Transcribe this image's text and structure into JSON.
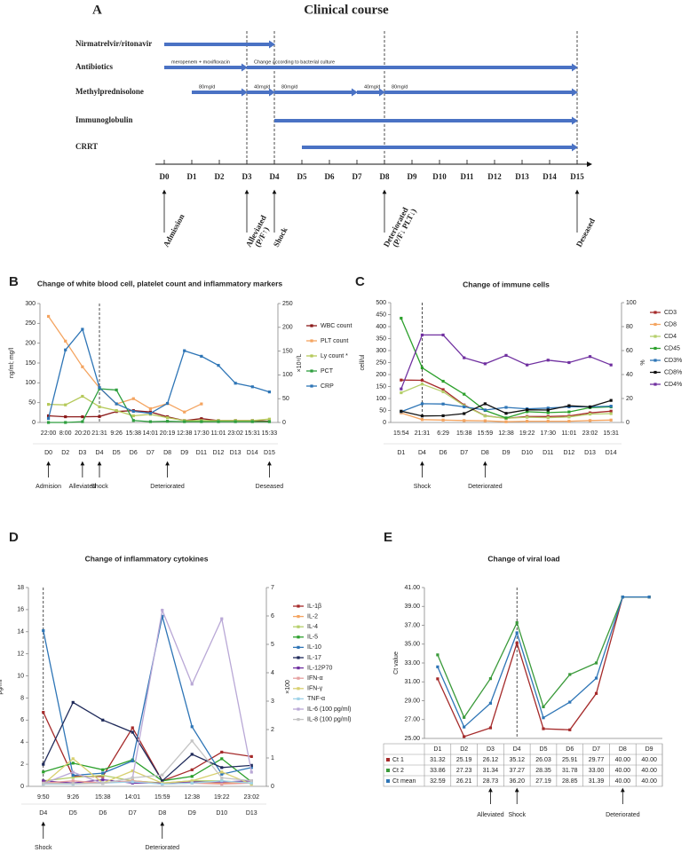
{
  "clinical_course": {
    "label": "A",
    "title": "Clinical course",
    "days": [
      "D0",
      "D1",
      "D2",
      "D3",
      "D4",
      "D5",
      "D6",
      "D7",
      "D8",
      "D9",
      "D10",
      "D11",
      "D12",
      "D13",
      "D14",
      "D15"
    ],
    "treatments": [
      {
        "name": "Nirmatrelvir/ritonavir",
        "segments": [
          {
            "from": "D0",
            "to": "D4"
          }
        ]
      },
      {
        "name": "Antibiotics",
        "segments": [
          {
            "from": "D0",
            "to": "D3",
            "text": "meropenem + moxifloxacin"
          },
          {
            "from": "D3",
            "to": "D15",
            "text": "Change according to bacterial culture"
          }
        ]
      },
      {
        "name": "Methylprednisolone",
        "segments": [
          {
            "from": "D1",
            "to": "D3",
            "text": "80mg/d"
          },
          {
            "from": "D3",
            "to": "D4",
            "text": "40mg/d"
          },
          {
            "from": "D4",
            "to": "D7",
            "text": "80mg/d"
          },
          {
            "from": "D7",
            "to": "D8",
            "text": "40mg/d"
          },
          {
            "from": "D8",
            "to": "D15",
            "text": "80mg/d"
          }
        ]
      },
      {
        "name": "Immunoglobulin",
        "segments": [
          {
            "from": "D4",
            "to": "D15"
          }
        ]
      },
      {
        "name": "CRRT",
        "segments": [
          {
            "from": "D5",
            "to": "D15"
          }
        ]
      }
    ],
    "events": [
      {
        "text": "Admission",
        "day": "D0"
      },
      {
        "text": "Alleviated",
        "detail": "(P/F↑)",
        "day": "D3",
        "dashed": true
      },
      {
        "text": "Shock",
        "day": "D4",
        "dashed": true
      },
      {
        "text": "Deteriorated",
        "detail": "(P/F↓ PLT↓)",
        "day": "D8",
        "dashed": true
      },
      {
        "text": "Deseased",
        "day": "D15",
        "dashed": true
      }
    ]
  },
  "chart_data": [
    {
      "type": "line",
      "label": "B",
      "title": "Change of white blood cell, platelet count and inflammatory markers",
      "ylabel": "ng/ml; mg/l",
      "y2label": "×10⁹/L",
      "legend": "right",
      "categories": [
        "22:00",
        "8:00",
        "20:20",
        "21:31",
        "9:26",
        "15:38",
        "14:01",
        "20:19",
        "12:38",
        "17:30",
        "11:01",
        "23:02",
        "15:31",
        "15:33"
      ],
      "days": [
        "D0",
        "D2",
        "D3",
        "D4",
        "D5",
        "D6",
        "D7",
        "D8",
        "D9",
        "D11",
        "D12",
        "D13",
        "D14",
        "D15"
      ],
      "dashed_line": "D4",
      "ylim": [
        0,
        300
      ],
      "yticks": [
        0,
        50,
        100,
        150,
        200,
        250,
        300
      ],
      "y2lim": [
        0,
        250
      ],
      "y2ticks": [
        0,
        50,
        100,
        150,
        200,
        250
      ],
      "series": [
        {
          "name": "WBC count",
          "color": "#8b1a1a",
          "axis": "y2",
          "values": [
            14,
            12,
            12,
            12.5,
            23,
            25,
            22,
            12,
            4,
            8,
            4,
            4,
            4,
            2.5
          ]
        },
        {
          "name": "PLT count",
          "color": "#f4a460",
          "axis": "y2",
          "values": [
            223,
            171,
            117,
            73,
            39,
            50,
            29,
            40,
            22,
            39,
            null,
            null,
            null,
            null
          ]
        },
        {
          "name": "Ly count *",
          "color": "#b5c95a",
          "axis": "y2",
          "values": [
            38,
            37,
            55,
            33,
            25,
            14,
            17,
            10,
            4,
            4,
            4,
            4,
            4,
            7
          ]
        },
        {
          "name": "PCT",
          "color": "#2e9e3e",
          "values": [
            0,
            0,
            2,
            85,
            82,
            5,
            2,
            3,
            2,
            2,
            2,
            2,
            2,
            2
          ]
        },
        {
          "name": "CRP",
          "color": "#2e75b6",
          "values": [
            10,
            183,
            235,
            88,
            47,
            28,
            23,
            48,
            181,
            167,
            144,
            99,
            90,
            77
          ]
        }
      ],
      "annotations": [
        {
          "text": "Admision",
          "at": "D0"
        },
        {
          "text": "Alleviated",
          "at": "D3"
        },
        {
          "text": "Shock",
          "at": "D4"
        },
        {
          "text": "Deteriorated",
          "at": "D8"
        },
        {
          "text": "Deseased",
          "at": "D15"
        }
      ]
    },
    {
      "type": "line",
      "label": "C",
      "title": "Change of immune cells",
      "ylabel": "cell/ul",
      "y2label": "%",
      "legend": "right",
      "categories": [
        "15:54",
        "21:31",
        "6:29",
        "15:38",
        "15:59",
        "12:38",
        "19:22",
        "17:30",
        "11:01",
        "23:02",
        "15:31"
      ],
      "days": [
        "D1",
        "D4",
        "D6",
        "D7",
        "D8",
        "D9",
        "D10",
        "D11",
        "D12",
        "D13",
        "D14"
      ],
      "dashed_line": "D4",
      "ylim": [
        0,
        500
      ],
      "yticks": [
        0,
        50,
        100,
        150,
        200,
        250,
        300,
        350,
        400,
        450,
        500
      ],
      "y2lim": [
        0,
        100
      ],
      "y2ticks": [
        0,
        20,
        40,
        60,
        80,
        100
      ],
      "series": [
        {
          "name": "CD3",
          "color": "#a52a2a",
          "values": [
            177,
            176,
            137,
            73,
            28,
            17,
            25,
            25,
            27,
            40,
            47
          ]
        },
        {
          "name": "CD8",
          "color": "#f4a460",
          "values": [
            40,
            12,
            10,
            8,
            7,
            3,
            5,
            5,
            5,
            8,
            10
          ]
        },
        {
          "name": "CD4",
          "color": "#b5cf6b",
          "values": [
            124,
            160,
            128,
            70,
            27,
            17,
            22,
            20,
            23,
            35,
            37
          ]
        },
        {
          "name": "CD45",
          "color": "#2ca02c",
          "values": [
            435,
            228,
            172,
            118,
            50,
            19,
            45,
            41,
            44,
            62,
            65
          ]
        },
        {
          "name": "CD3%",
          "color": "#2e75b6",
          "axis": "y2",
          "values": [
            9,
            15.6,
            15.4,
            13,
            10.4,
            12.6,
            11.4,
            12,
            13,
            13,
            13.6
          ]
        },
        {
          "name": "CD8%",
          "color": "#111111",
          "axis": "y2",
          "values": [
            9.4,
            5.4,
            5.6,
            7.4,
            15.6,
            7.6,
            10.6,
            10.4,
            14,
            13,
            18.4
          ]
        },
        {
          "name": "CD4%",
          "color": "#7030a0",
          "axis": "y2",
          "values": [
            28,
            73,
            73,
            54,
            49,
            56,
            48,
            52,
            50,
            55,
            48
          ]
        }
      ],
      "annotations": [
        {
          "text": "Shock",
          "at": "D4"
        },
        {
          "text": "Deteriorated",
          "at": "D8"
        }
      ]
    },
    {
      "type": "line",
      "label": "D",
      "title": "Change of inflammatory cytokines",
      "ylabel": "pg/ml",
      "y2label": "×100",
      "legend": "right",
      "categories": [
        "9:50",
        "9:26",
        "15:38",
        "14:01",
        "15:59",
        "12:38",
        "19:22",
        "23:02"
      ],
      "days": [
        "D4",
        "D5",
        "D6",
        "D7",
        "D8",
        "D9",
        "D10",
        "D13"
      ],
      "dashed_line": "D4",
      "ylim": [
        0,
        18
      ],
      "yticks": [
        0,
        2,
        4,
        6,
        8,
        10,
        12,
        14,
        16,
        18
      ],
      "y2lim": [
        0,
        7
      ],
      "y2ticks": [
        0,
        1,
        2,
        3,
        4,
        5,
        6,
        7
      ],
      "series": [
        {
          "name": "IL-1β",
          "color": "#a52a2a",
          "values": [
            6.7,
            0.9,
            0.9,
            5.3,
            0.5,
            1.5,
            3.1,
            2.7
          ]
        },
        {
          "name": "IL-2",
          "color": "#f4a460",
          "values": [
            0.3,
            0.3,
            0.3,
            0.5,
            0.3,
            0.3,
            0.3,
            0.3
          ]
        },
        {
          "name": "IL-4",
          "color": "#b5cf6b",
          "values": [
            0.5,
            0.8,
            1.0,
            0.5,
            0.3,
            0.5,
            0.5,
            0.3
          ]
        },
        {
          "name": "IL-5",
          "color": "#2ca02c",
          "values": [
            1.3,
            2.1,
            1.5,
            2.4,
            0.5,
            0.9,
            2.5,
            0.4
          ]
        },
        {
          "name": "IL-10",
          "color": "#2e75b6",
          "values": [
            14.1,
            1.0,
            1.2,
            2.3,
            15.4,
            5.4,
            1.1,
            1.7
          ]
        },
        {
          "name": "IL-17",
          "color": "#1f2a5a",
          "values": [
            2.0,
            7.6,
            6.0,
            4.9,
            0.5,
            2.9,
            1.7,
            1.9
          ]
        },
        {
          "name": "IL-12P70",
          "color": "#7030a0",
          "values": [
            0.5,
            0.3,
            0.6,
            0.3,
            0.3,
            0.4,
            0.4,
            0.5
          ]
        },
        {
          "name": "IFN-α",
          "color": "#e6a0a0",
          "values": [
            0.3,
            0.5,
            0.3,
            0.5,
            0.2,
            0.3,
            0.2,
            0.3
          ]
        },
        {
          "name": "IFN-γ",
          "color": "#d8d070",
          "values": [
            0.2,
            2.5,
            0.3,
            1.4,
            0.3,
            0.5,
            1.3,
            0.2
          ]
        },
        {
          "name": "TNF-α",
          "color": "#9fd3e8",
          "values": [
            0.2,
            0.2,
            0.3,
            0.4,
            0.2,
            0.3,
            0.5,
            0.3
          ]
        },
        {
          "name": "IL-6 (100 pg/ml)",
          "color": "#b9a8d6",
          "axis": "y2",
          "values": [
            0.1,
            0.5,
            0.1,
            0.3,
            6.2,
            3.6,
            5.9,
            0.5
          ]
        },
        {
          "name": "IL-8 (100 pg/ml)",
          "color": "#c4c4c4",
          "axis": "y2",
          "values": [
            0.1,
            0.1,
            0.1,
            0.3,
            0.4,
            1.6,
            0.3,
            0.2
          ]
        }
      ],
      "annotations": [
        {
          "text": "Shock",
          "at": "D4"
        },
        {
          "text": "Deteriorated",
          "at": "D8"
        }
      ]
    },
    {
      "type": "line",
      "label": "E",
      "title": "Change of viral load",
      "ylabel": "Ct value",
      "legend": "table",
      "categories": [
        "D1",
        "D2",
        "D3",
        "D4",
        "D5",
        "D6",
        "D7",
        "D8",
        "D9"
      ],
      "dashed_line": "D4",
      "ylim": [
        25,
        41
      ],
      "yticks": [
        {
          "value": 25,
          "label": "25.00"
        },
        {
          "value": 27,
          "label": "27.00"
        },
        {
          "value": 29,
          "label": "29.00"
        },
        {
          "value": 31,
          "label": "31.00"
        },
        {
          "value": 33,
          "label": "33.00"
        },
        {
          "value": 35,
          "label": "35.00"
        },
        {
          "value": 37,
          "label": "37.00"
        },
        {
          "value": 39,
          "label": "39.00"
        },
        {
          "value": 41,
          "label": "41.00"
        }
      ],
      "series": [
        {
          "name": "Ct 1",
          "color": "#a52a2a",
          "values": [
            31.32,
            25.19,
            26.12,
            35.12,
            26.03,
            25.91,
            29.77,
            40,
            40
          ],
          "value_labels": [
            "31.32",
            "25.19",
            "26.12",
            "35.12",
            "26.03",
            "25.91",
            "29.77",
            "40.00",
            "40.00"
          ]
        },
        {
          "name": "Ct 2",
          "color": "#3a9a3a",
          "values": [
            33.86,
            27.23,
            31.34,
            37.27,
            28.35,
            31.78,
            33,
            40,
            40
          ],
          "value_labels": [
            "33.86",
            "27.23",
            "31.34",
            "37.27",
            "28.35",
            "31.78",
            "33.00",
            "40.00",
            "40.00"
          ]
        },
        {
          "name": "Ct mean",
          "color": "#2e75b6",
          "values": [
            32.59,
            26.21,
            28.73,
            36.2,
            27.19,
            28.85,
            31.39,
            40,
            40
          ],
          "value_labels": [
            "32.59",
            "26.21",
            "28.73",
            "36.20",
            "27.19",
            "28.85",
            "31.39",
            "40.00",
            "40.00"
          ]
        }
      ],
      "annotations": [
        {
          "text": "Alleviated",
          "at": "D3"
        },
        {
          "text": "Shock",
          "at": "D4"
        },
        {
          "text": "Deteriorated",
          "at": "D8"
        }
      ]
    }
  ]
}
